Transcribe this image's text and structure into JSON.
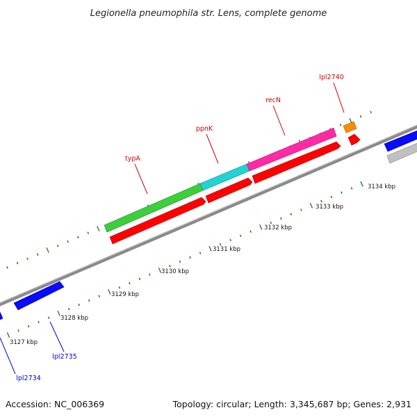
{
  "title": "Legionella pneumophila str. Lens, complete genome",
  "footer": {
    "accession": "Accession: NC_006369",
    "summary": "Topology: circular; Length: 3,345,687 bp; Genes: 2,931"
  },
  "scale_labels": [
    "3127 kbp",
    "3128 kbp",
    "3129 kbp",
    "3130 kbp",
    "3131 kbp",
    "3132 kbp",
    "3133 kbp",
    "3134 kbp"
  ],
  "gene_labels": {
    "typA": "typA",
    "ppnK": "ppnK",
    "recN": "recN",
    "lpl2740": "lpl2740",
    "lpl2735": "lpl2735",
    "lpl2734": "lpl2734"
  },
  "colors": {
    "backbone": "#8a8a8a",
    "tick": "#2e7d32",
    "cds": "#ff0000",
    "typA": "#3ccf3c",
    "ppnK": "#22d3d3",
    "recN": "#ff2aa6",
    "lpl2740": "#ff8c00",
    "other_gene": "#0a0aff",
    "gray_feature": "#c0c0c0",
    "red_label": "#cc0000",
    "blue_label": "#0000cc"
  }
}
